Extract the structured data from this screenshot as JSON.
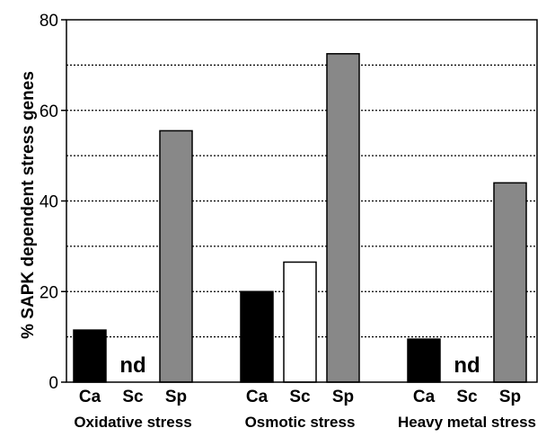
{
  "chart_data": {
    "type": "bar",
    "title": "",
    "xlabel": "",
    "ylabel": "% SAPK dependent stress genes",
    "ylim": [
      0,
      80
    ],
    "yticks": [
      0,
      20,
      40,
      60,
      80
    ],
    "grid": "horizontal dotted every 10",
    "groups": [
      {
        "label": "Oxidative stress",
        "bars": [
          {
            "category": "Ca",
            "value": 11.5,
            "color": "#000000",
            "nd": false
          },
          {
            "category": "Sc",
            "value": null,
            "color": "#ffffff",
            "nd": true
          },
          {
            "category": "Sp",
            "value": 55.5,
            "color": "#888888",
            "nd": false
          }
        ]
      },
      {
        "label": "Osmotic stress",
        "bars": [
          {
            "category": "Ca",
            "value": 20,
            "color": "#000000",
            "nd": false
          },
          {
            "category": "Sc",
            "value": 26.5,
            "color": "#ffffff",
            "nd": false
          },
          {
            "category": "Sp",
            "value": 72.5,
            "color": "#888888",
            "nd": false
          }
        ]
      },
      {
        "label": "Heavy metal stress",
        "bars": [
          {
            "category": "Ca",
            "value": 9.5,
            "color": "#000000",
            "nd": false
          },
          {
            "category": "Sc",
            "value": null,
            "color": "#ffffff",
            "nd": true
          },
          {
            "category": "Sp",
            "value": 44,
            "color": "#888888",
            "nd": false
          }
        ]
      }
    ],
    "nd_text": "nd"
  }
}
